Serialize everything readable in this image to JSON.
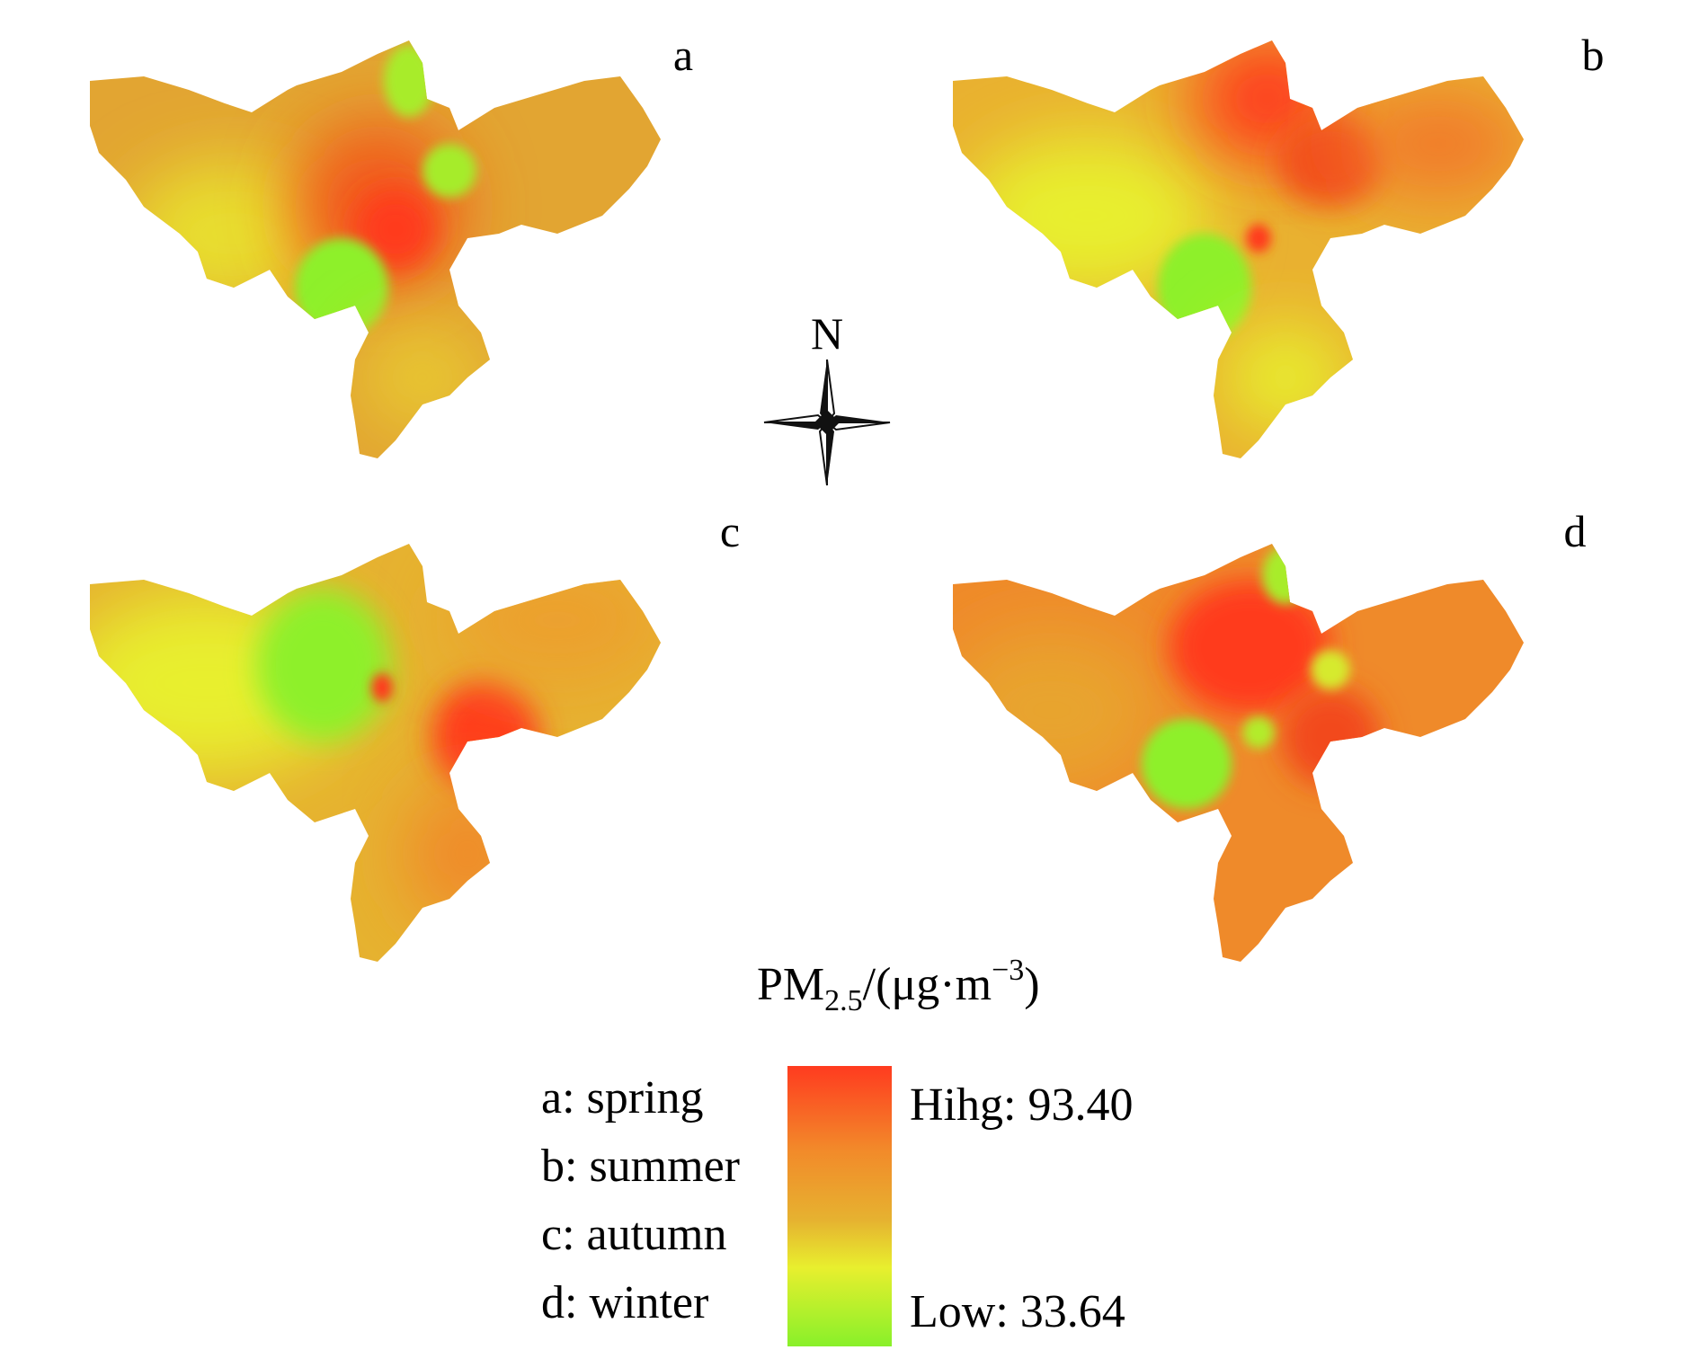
{
  "figure": {
    "panels": [
      {
        "id": "a",
        "letter": "a",
        "season": "spring"
      },
      {
        "id": "b",
        "letter": "b",
        "season": "summer"
      },
      {
        "id": "c",
        "letter": "c",
        "season": "autumn"
      },
      {
        "id": "d",
        "letter": "d",
        "season": "winter"
      }
    ],
    "north_label": "N",
    "legend": {
      "title_prefix": "PM",
      "title_subscript": "2.5",
      "title_mid": "/(μg·m",
      "title_superscript": "−3",
      "title_suffix": ")",
      "seasons": [
        "a: spring",
        "b: summer",
        "c: autumn",
        "d: winter"
      ],
      "high_label": "Hihg: 93.40",
      "low_label": "Low: 33.64",
      "high_value": 93.4,
      "low_value": 33.64,
      "colors": {
        "high": "#ff3b1f",
        "upper_mid": "#f28a2a",
        "mid": "#e6b230",
        "lower_mid": "#e8ef2e",
        "low": "#88f02a"
      }
    }
  }
}
